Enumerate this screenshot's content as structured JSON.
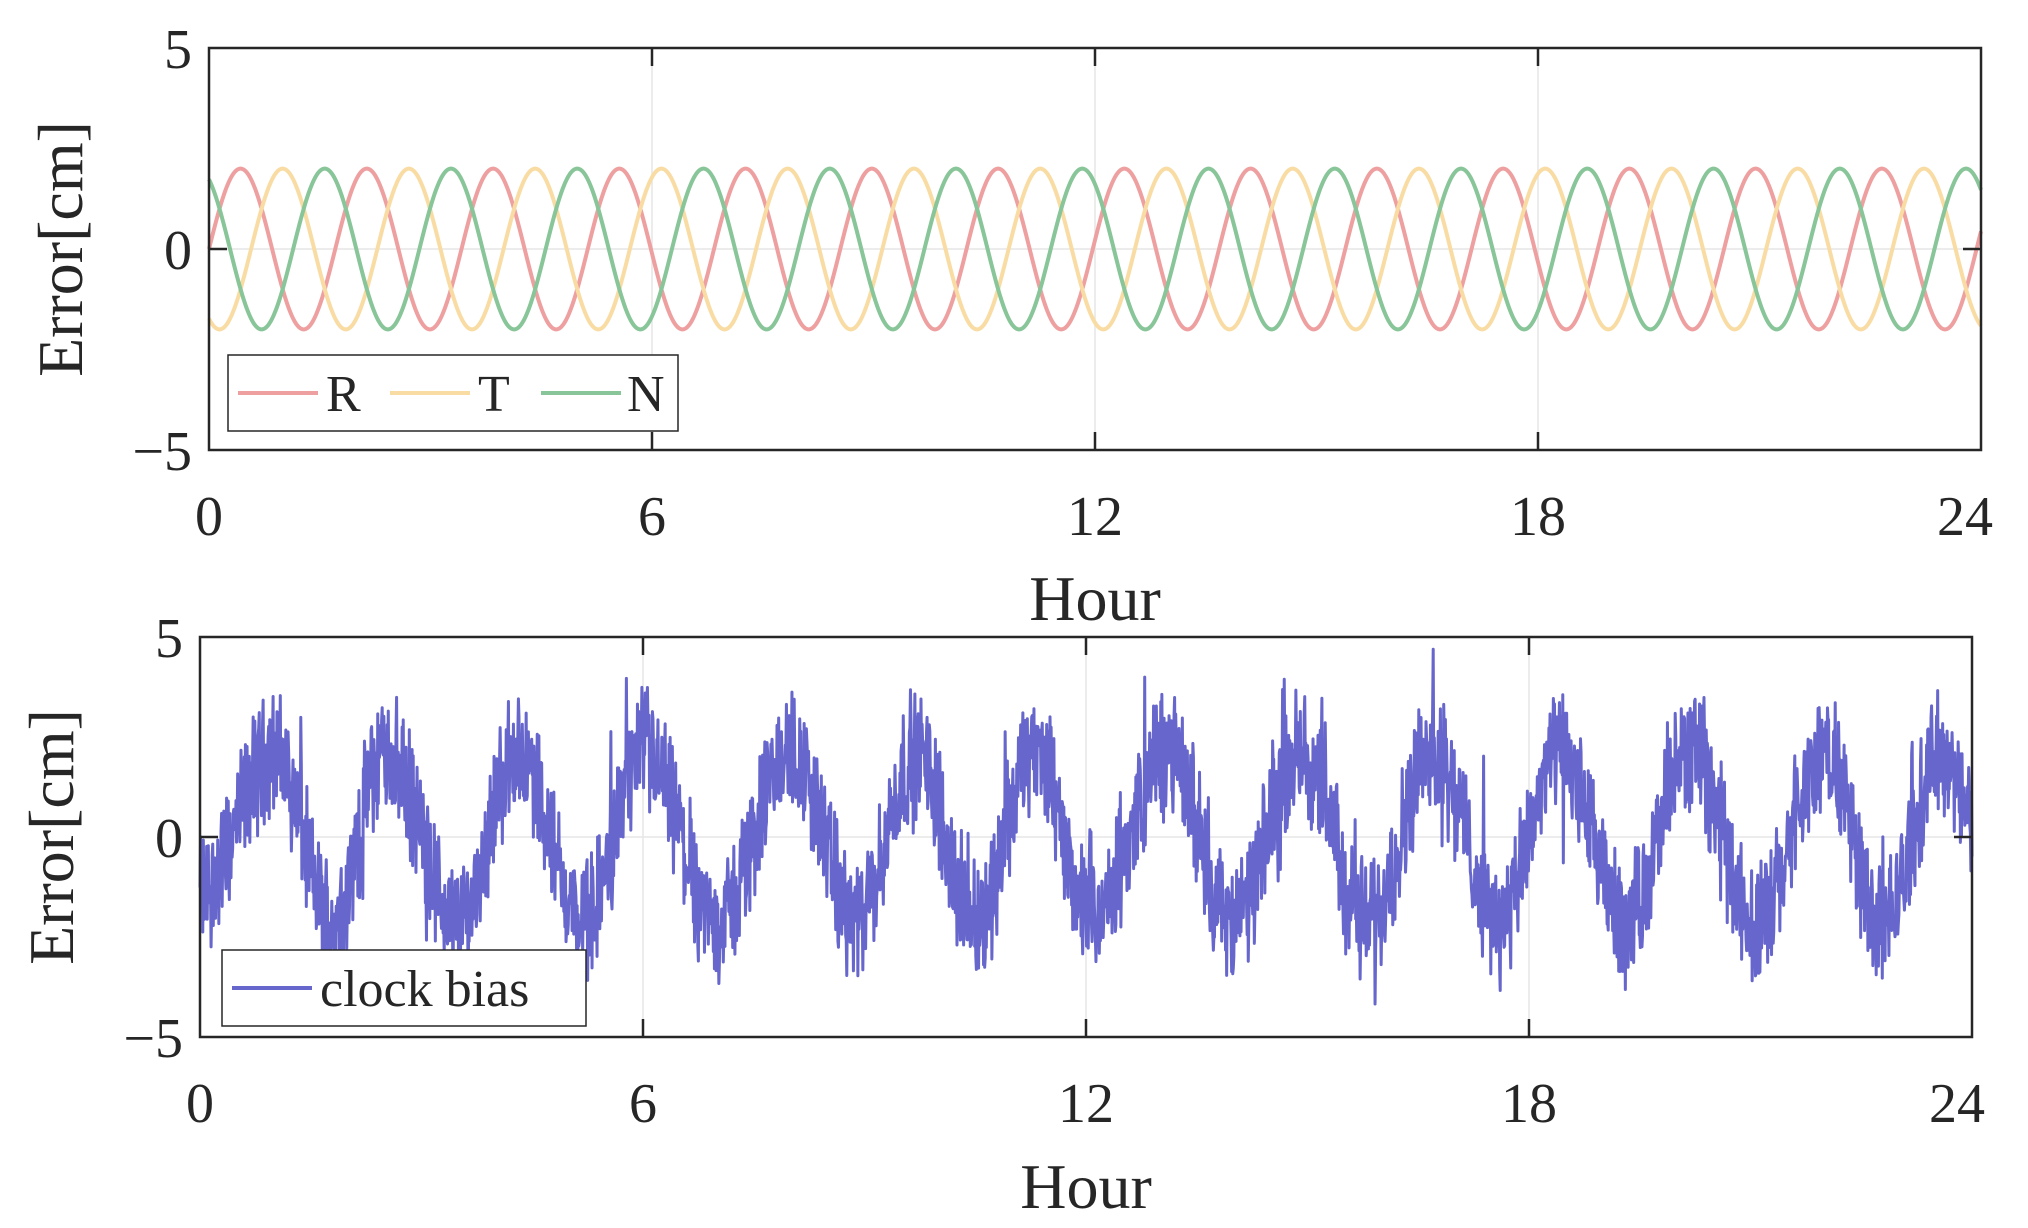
{
  "chart_data": [
    {
      "type": "line",
      "title": "",
      "xlabel": "Hour",
      "ylabel": "Error[cm]",
      "xlim": [
        0,
        24
      ],
      "ylim": [
        -5,
        5
      ],
      "xticks": [
        "0",
        "6",
        "12",
        "18",
        "24"
      ],
      "yticks": [
        "5",
        "0",
        "−5"
      ],
      "grid": true,
      "legend_position": "bottom-left",
      "legend_orientation": "horizontal",
      "series": [
        {
          "name": "R",
          "color": "#eea0a0",
          "amplitude": 2,
          "period_hours": 1.71,
          "phase_deg": 0
        },
        {
          "name": "T",
          "color": "#f9dca4",
          "amplitude": 2,
          "period_hours": 1.71,
          "phase_deg": 120
        },
        {
          "name": "N",
          "color": "#88c598",
          "amplitude": 2,
          "period_hours": 1.71,
          "phase_deg": 240
        }
      ]
    },
    {
      "type": "line",
      "title": "",
      "xlabel": "Hour",
      "ylabel": "Error[cm]",
      "xlim": [
        0,
        24
      ],
      "ylim": [
        -5,
        5
      ],
      "xticks": [
        "0",
        "6",
        "12",
        "18",
        "24"
      ],
      "yticks": [
        "5",
        "0",
        "−5"
      ],
      "grid": true,
      "legend_position": "bottom-left",
      "series": [
        {
          "name": "clock bias",
          "color": "#6666cc",
          "description": "quasi-periodic noisy signal, period ~2 h, amplitude ~2 cm with noise up to about ±2 cm",
          "peaks_hours": [
            1.0,
            2.5,
            4.3,
            6.0,
            8.0,
            9.7,
            11.3,
            13.1,
            14.9,
            16.7,
            18.4,
            20.2,
            22.0,
            23.6
          ],
          "troughs_hours": [
            1.8,
            3.5,
            5.2,
            7.0,
            8.9,
            10.5,
            12.1,
            14.0,
            15.8,
            17.6,
            19.3,
            21.1,
            22.8
          ],
          "min_value": -4.4,
          "max_value": 4.9
        }
      ]
    }
  ]
}
